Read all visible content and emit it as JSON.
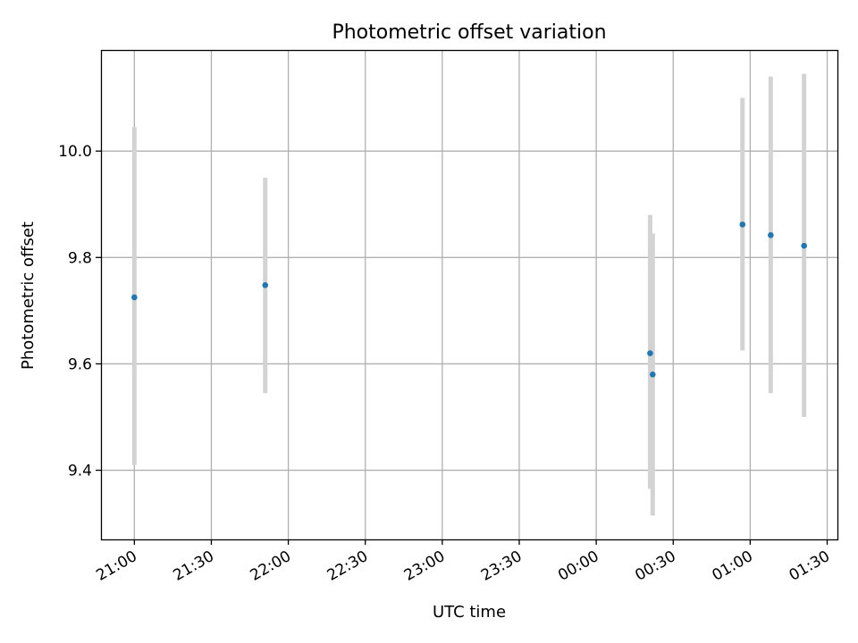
{
  "chart_data": {
    "type": "scatter",
    "title": "Photometric offset variation",
    "xlabel": "UTC time",
    "ylabel": "Photometric offset",
    "x_type": "time",
    "x_range": [
      "20:47",
      "01:34"
    ],
    "ylim": [
      9.27,
      10.19
    ],
    "x_ticks": [
      "21:00",
      "21:30",
      "22:00",
      "22:30",
      "23:00",
      "23:30",
      "00:00",
      "00:30",
      "01:00",
      "01:30"
    ],
    "y_ticks": [
      9.4,
      9.6,
      9.8,
      10.0
    ],
    "y_tick_labels": [
      "9.4",
      "9.6",
      "9.8",
      "10.0"
    ],
    "grid": true,
    "points": [
      {
        "x": "21:00",
        "y": 9.725,
        "err_low": 9.41,
        "err_high": 10.045
      },
      {
        "x": "21:51",
        "y": 9.748,
        "err_low": 9.545,
        "err_high": 9.95
      },
      {
        "x": "00:21",
        "y": 9.62,
        "err_low": 9.365,
        "err_high": 9.88
      },
      {
        "x": "00:22",
        "y": 9.58,
        "err_low": 9.315,
        "err_high": 9.845
      },
      {
        "x": "00:57",
        "y": 9.862,
        "err_low": 9.625,
        "err_high": 10.1
      },
      {
        "x": "01:08",
        "y": 9.842,
        "err_low": 9.545,
        "err_high": 10.14
      },
      {
        "x": "01:21",
        "y": 9.822,
        "err_low": 9.5,
        "err_high": 10.145
      }
    ],
    "colors": {
      "marker": "#1f77b4",
      "errorbar": "#d3d3d3",
      "grid": "#b0b0b0",
      "axes": "#000000"
    }
  }
}
